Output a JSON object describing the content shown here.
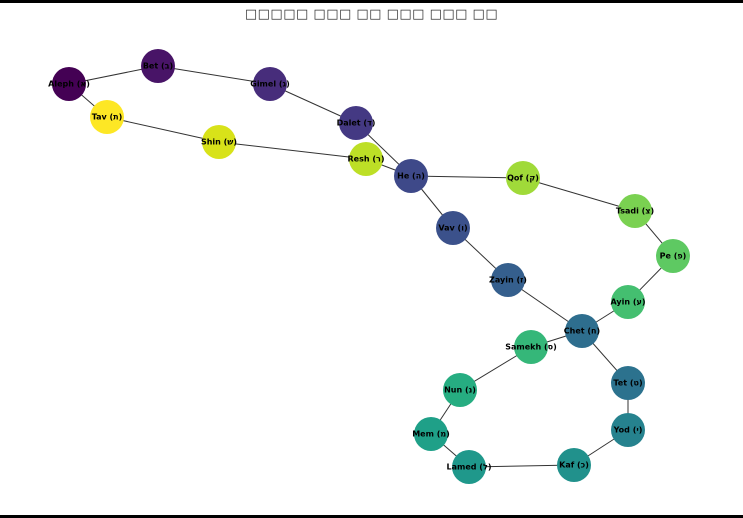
{
  "title": "□□□□□ □□□ □□ □□□ □□□ □□",
  "graph": {
    "nodes": [
      {
        "id": "aleph",
        "label": "Aleph (א)",
        "color": "#440154"
      },
      {
        "id": "bet",
        "label": "Bet (ב)",
        "color": "#481467"
      },
      {
        "id": "gimel",
        "label": "Gimel (ג)",
        "color": "#472d7b"
      },
      {
        "id": "dalet",
        "label": "Dalet (ד)",
        "color": "#443983"
      },
      {
        "id": "he",
        "label": "He (ה)",
        "color": "#3e4989"
      },
      {
        "id": "vav",
        "label": "Vav (ו)",
        "color": "#3b518b"
      },
      {
        "id": "zayin",
        "label": "Zayin (ז)",
        "color": "#355f8d"
      },
      {
        "id": "chet",
        "label": "Chet (ח)",
        "color": "#2e6e8e"
      },
      {
        "id": "tet",
        "label": "Tet (ט)",
        "color": "#2c728e"
      },
      {
        "id": "yod",
        "label": "Yod (י)",
        "color": "#26828e"
      },
      {
        "id": "kaf",
        "label": "Kaf (כ)",
        "color": "#21918c"
      },
      {
        "id": "lamed",
        "label": "Lamed (ל)",
        "color": "#1f988b"
      },
      {
        "id": "mem",
        "label": "Mem (מ)",
        "color": "#1fa088"
      },
      {
        "id": "nun",
        "label": "Nun (נ)",
        "color": "#26ad81"
      },
      {
        "id": "samekh",
        "label": "Samekh (ס)",
        "color": "#35b779"
      },
      {
        "id": "ayin",
        "label": "Ayin (ע)",
        "color": "#44bf70"
      },
      {
        "id": "pe",
        "label": "Pe (פ)",
        "color": "#5ec962"
      },
      {
        "id": "tsadi",
        "label": "Tsadi (צ)",
        "color": "#7ad151"
      },
      {
        "id": "qof",
        "label": "Qof (ק)",
        "color": "#a0da39"
      },
      {
        "id": "resh",
        "label": "Resh (ר)",
        "color": "#bddf26"
      },
      {
        "id": "shin",
        "label": "Shin (ש)",
        "color": "#d8e219"
      },
      {
        "id": "tav",
        "label": "Tav (ת)",
        "color": "#fde725"
      }
    ],
    "edges": [
      [
        "aleph",
        "bet"
      ],
      [
        "bet",
        "gimel"
      ],
      [
        "gimel",
        "dalet"
      ],
      [
        "dalet",
        "he"
      ],
      [
        "he",
        "vav"
      ],
      [
        "vav",
        "zayin"
      ],
      [
        "zayin",
        "chet"
      ],
      [
        "chet",
        "tet"
      ],
      [
        "tet",
        "yod"
      ],
      [
        "yod",
        "kaf"
      ],
      [
        "kaf",
        "lamed"
      ],
      [
        "lamed",
        "mem"
      ],
      [
        "mem",
        "nun"
      ],
      [
        "nun",
        "samekh"
      ],
      [
        "samekh",
        "chet"
      ],
      [
        "chet",
        "ayin"
      ],
      [
        "ayin",
        "pe"
      ],
      [
        "pe",
        "tsadi"
      ],
      [
        "tsadi",
        "qof"
      ],
      [
        "qof",
        "he"
      ],
      [
        "he",
        "resh"
      ],
      [
        "resh",
        "shin"
      ],
      [
        "shin",
        "tav"
      ],
      [
        "tav",
        "aleph"
      ]
    ],
    "edge_color": "#333333"
  }
}
